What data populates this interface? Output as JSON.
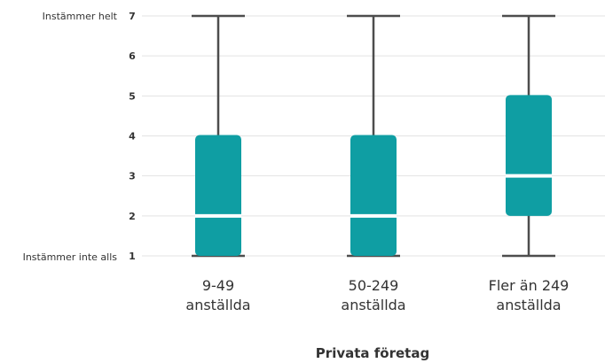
{
  "chart_data": {
    "type": "box",
    "xlabel": "Privata företag",
    "ylim": [
      1,
      7
    ],
    "y_ticks": [
      1,
      2,
      3,
      4,
      5,
      6,
      7
    ],
    "y_anchor_labels": {
      "top": "Instämmer helt",
      "bottom": "Instämmer inte alls"
    },
    "grid": true,
    "categories": [
      [
        "9-49",
        "anställda"
      ],
      [
        "50-249",
        "anställda"
      ],
      [
        "Fler än 249",
        "anställda"
      ]
    ],
    "boxes": [
      {
        "min": 1,
        "q1": 1,
        "median": 2,
        "q3": 4,
        "max": 7
      },
      {
        "min": 1,
        "q1": 1,
        "median": 2,
        "q3": 4,
        "max": 7
      },
      {
        "min": 1,
        "q1": 2,
        "median": 3,
        "q3": 5,
        "max": 7
      }
    ],
    "colors": {
      "box": "#0f9ea3",
      "median": "#ffffff",
      "whisker": "#4d4d4d",
      "grid": "#e3e3e3",
      "text": "#333333"
    }
  }
}
